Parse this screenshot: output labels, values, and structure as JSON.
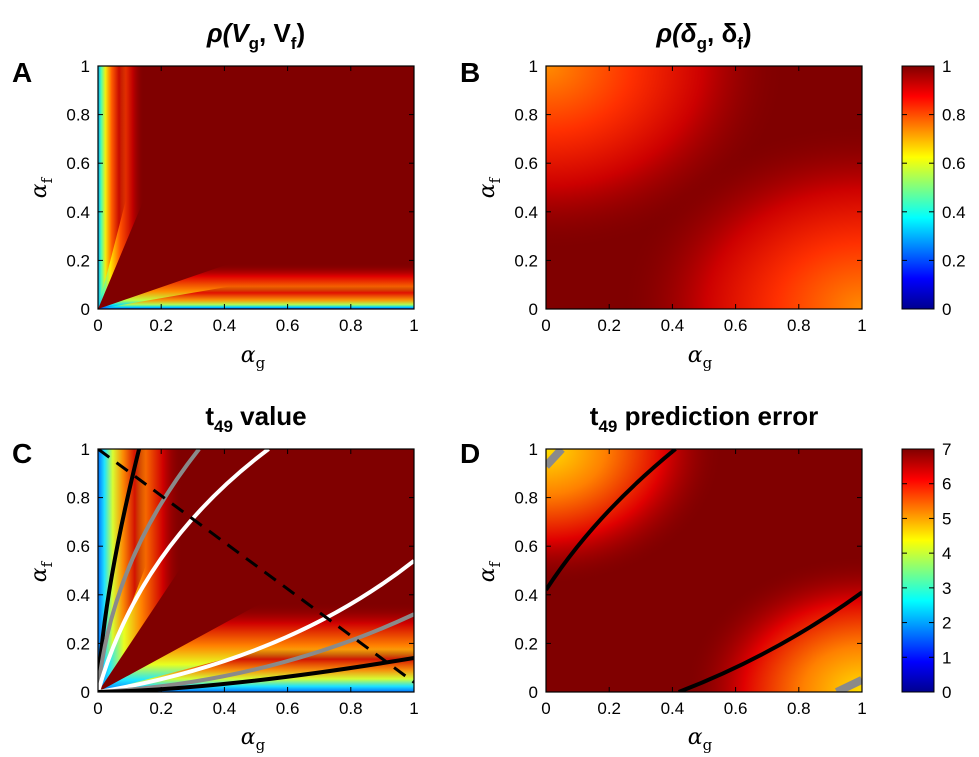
{
  "chart_data": [
    {
      "panel": "A",
      "type": "heatmap",
      "title_parts": [
        "ρ(V",
        "g",
        ", V",
        "f",
        ")"
      ],
      "xlabel_base": "α",
      "xlabel_sub": "g",
      "ylabel_base": "α",
      "ylabel_sub": "f",
      "xlim": [
        0,
        1
      ],
      "ylim": [
        0,
        1
      ],
      "xticks": [
        "0",
        "0.2",
        "0.4",
        "0.6",
        "0.8",
        "1"
      ],
      "yticks": [
        "0",
        "0.2",
        "0.4",
        "0.6",
        "0.8",
        "1"
      ],
      "colorbar": null,
      "grid": false
    },
    {
      "panel": "B",
      "type": "heatmap",
      "title_parts": [
        "ρ(δ",
        "g",
        ", δ",
        "f",
        ")"
      ],
      "xlabel_base": "α",
      "xlabel_sub": "g",
      "ylabel_base": "α",
      "ylabel_sub": "f",
      "xlim": [
        0,
        1
      ],
      "ylim": [
        0,
        1
      ],
      "xticks": [
        "0",
        "0.2",
        "0.4",
        "0.6",
        "0.8",
        "1"
      ],
      "yticks": [
        "0",
        "0.2",
        "0.4",
        "0.6",
        "0.8",
        "1"
      ],
      "colorbar": {
        "range": [
          0,
          1
        ],
        "ticks": [
          "0",
          "0.2",
          "0.4",
          "0.6",
          "0.8",
          "1"
        ]
      },
      "grid": false
    },
    {
      "panel": "C",
      "type": "heatmap",
      "title_parts": [
        "t",
        "49",
        " value"
      ],
      "xlabel_base": "α",
      "xlabel_sub": "g",
      "ylabel_base": "α",
      "ylabel_sub": "f",
      "xlim": [
        0,
        1
      ],
      "ylim": [
        0,
        1
      ],
      "xticks": [
        "0",
        "0.2",
        "0.4",
        "0.6",
        "0.8",
        "1"
      ],
      "yticks": [
        "0",
        "0.2",
        "0.4",
        "0.6",
        "0.8",
        "1"
      ],
      "colorbar": null,
      "contours": [
        {
          "color": "black",
          "points": [
            [
              0,
              0
            ],
            [
              0.04,
              0.45
            ],
            [
              0.13,
              1.0
            ]
          ]
        },
        {
          "color": "gray",
          "points": [
            [
              0,
              0
            ],
            [
              0.1,
              0.52
            ],
            [
              0.32,
              1.0
            ]
          ]
        },
        {
          "color": "white",
          "points": [
            [
              0,
              0
            ],
            [
              0.2,
              0.55
            ],
            [
              0.54,
              1.0
            ]
          ]
        },
        {
          "color": "white",
          "points": [
            [
              0,
              0
            ],
            [
              0.55,
              0.2
            ],
            [
              1.0,
              0.54
            ]
          ]
        },
        {
          "color": "gray",
          "points": [
            [
              0,
              0
            ],
            [
              0.52,
              0.1
            ],
            [
              1.0,
              0.32
            ]
          ]
        },
        {
          "color": "black",
          "points": [
            [
              0,
              0
            ],
            [
              0.45,
              0.04
            ],
            [
              1.0,
              0.14
            ]
          ]
        }
      ],
      "diagonal": {
        "style": "dashed",
        "color": "black",
        "points": [
          [
            0,
            1.0
          ],
          [
            1.0,
            0.04
          ]
        ]
      },
      "grid": false
    },
    {
      "panel": "D",
      "type": "heatmap",
      "title_parts": [
        "t",
        "49",
        " prediction error"
      ],
      "xlabel_base": "α",
      "xlabel_sub": "g",
      "ylabel_base": "α",
      "ylabel_sub": "f",
      "xlim": [
        0,
        1
      ],
      "ylim": [
        0,
        1
      ],
      "xticks": [
        "0",
        "0.2",
        "0.4",
        "0.6",
        "0.8",
        "1"
      ],
      "yticks": [
        "0",
        "0.2",
        "0.4",
        "0.6",
        "0.8",
        "1"
      ],
      "colorbar": {
        "range": [
          0,
          7
        ],
        "ticks": [
          "0",
          "1",
          "2",
          "3",
          "4",
          "5",
          "6",
          "7"
        ]
      },
      "contours": [
        {
          "color": "black",
          "points": [
            [
              0,
              0.42
            ],
            [
              0.18,
              0.72
            ],
            [
              0.41,
              1.0
            ]
          ]
        },
        {
          "color": "black",
          "points": [
            [
              0.42,
              0
            ],
            [
              0.72,
              0.18
            ],
            [
              1.0,
              0.41
            ]
          ]
        },
        {
          "color": "gray",
          "points": [
            [
              0,
              0.93
            ],
            [
              0.05,
              1.0
            ]
          ]
        },
        {
          "color": "gray",
          "points": [
            [
              0.92,
              0
            ],
            [
              1.0,
              0.05
            ]
          ]
        }
      ],
      "grid": false
    }
  ]
}
